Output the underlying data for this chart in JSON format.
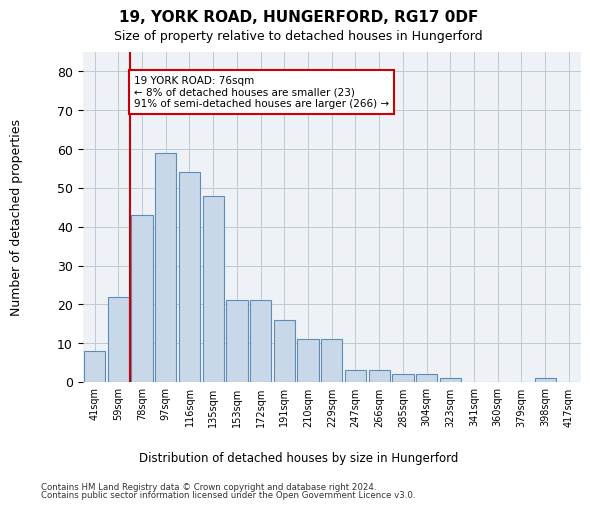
{
  "title1": "19, YORK ROAD, HUNGERFORD, RG17 0DF",
  "title2": "Size of property relative to detached houses in Hungerford",
  "xlabel": "Distribution of detached houses by size in Hungerford",
  "ylabel": "Number of detached properties",
  "bar_values": [
    8,
    22,
    43,
    59,
    54,
    48,
    21,
    21,
    16,
    11,
    11,
    3,
    3,
    2,
    2,
    1,
    0,
    0,
    0,
    1,
    0
  ],
  "bar_labels": [
    "41sqm",
    "59sqm",
    "78sqm",
    "97sqm",
    "116sqm",
    "135sqm",
    "153sqm",
    "172sqm",
    "191sqm",
    "210sqm",
    "229sqm",
    "247sqm",
    "266sqm",
    "285sqm",
    "304sqm",
    "323sqm",
    "341sqm",
    "360sqm",
    "379sqm",
    "398sqm",
    "417sqm"
  ],
  "bar_color": "#c8d8e8",
  "bar_edge_color": "#5b8db8",
  "annotation_box_text": "19 YORK ROAD: 76sqm\n← 8% of detached houses are smaller (23)\n91% of semi-detached houses are larger (266) →",
  "red_line_color": "#cc0000",
  "red_box_color": "#cc0000",
  "ylim": [
    0,
    85
  ],
  "yticks": [
    0,
    10,
    20,
    30,
    40,
    50,
    60,
    70,
    80
  ],
  "grid_color": "#c0c8d0",
  "bg_color": "#eef2f7",
  "footer1": "Contains HM Land Registry data © Crown copyright and database right 2024.",
  "footer2": "Contains public sector information licensed under the Open Government Licence v3.0."
}
